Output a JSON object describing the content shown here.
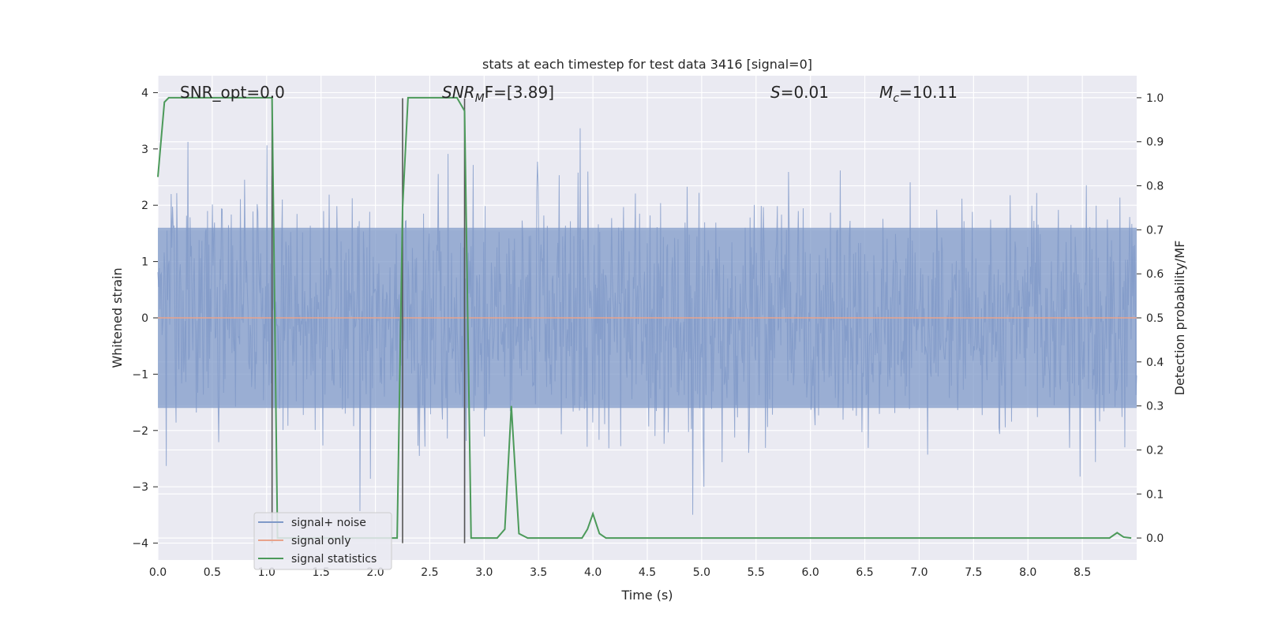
{
  "chart_data": {
    "type": "line",
    "title": "stats at each timestep for test data 3416 [signal=0]",
    "xlabel": "Time (s)",
    "ylabel": "Whitened strain",
    "y2label": "Detection probability/MF",
    "xlim": [
      0.0,
      9.0
    ],
    "ylim": [
      -4.3,
      4.3
    ],
    "y2lim": [
      -0.05,
      1.05
    ],
    "xticks": [
      0.0,
      0.5,
      1.0,
      1.5,
      2.0,
      2.5,
      3.0,
      3.5,
      4.0,
      4.5,
      5.0,
      5.5,
      6.0,
      6.5,
      7.0,
      7.5,
      8.0,
      8.5
    ],
    "yticks": [
      -4,
      -3,
      -2,
      -1,
      0,
      1,
      2,
      3,
      4
    ],
    "y2ticks": [
      0.0,
      0.1,
      0.2,
      0.3,
      0.4,
      0.5,
      0.6,
      0.7,
      0.8,
      0.9,
      1.0
    ],
    "grid": true,
    "legend_position": "lower-left",
    "annotations": {
      "snr_opt": "SNR_opt=0.0",
      "snr_mf_main": "SNR",
      "snr_mf_sub": "M",
      "snr_mf_rest": "F=[3.89]",
      "s_main": "S",
      "s_rest": "=0.01",
      "mc_main": "M",
      "mc_sub": "c",
      "mc_rest": "=10.11"
    },
    "vertical_markers_x": [
      1.05,
      2.25,
      2.82
    ],
    "series": [
      {
        "name": "signal+ noise",
        "color": "#7f99c8",
        "axis": "left",
        "description_envelope": {
          "typical_abs": 1.6,
          "max_abs": 4.0
        }
      },
      {
        "name": "signal only",
        "color": "#e8a38c",
        "axis": "left",
        "x": [
          0.0,
          9.0
        ],
        "y": [
          0.0,
          0.0
        ]
      },
      {
        "name": "signal statistics",
        "color": "#4c9a5a",
        "axis": "right",
        "x": [
          0.0,
          0.06,
          0.1,
          0.15,
          0.5,
          1.0,
          1.05,
          1.1,
          1.5,
          2.0,
          2.2,
          2.25,
          2.3,
          2.5,
          2.75,
          2.82,
          2.88,
          3.0,
          3.12,
          3.19,
          3.25,
          3.32,
          3.4,
          3.5,
          3.9,
          3.95,
          4.0,
          4.06,
          4.12,
          4.2,
          5.0,
          6.0,
          7.0,
          8.0,
          8.75,
          8.82,
          8.88,
          8.95
        ],
        "y": [
          0.82,
          0.99,
          1.0,
          1.0,
          1.0,
          1.0,
          1.0,
          0.0,
          0.0,
          0.0,
          0.0,
          0.75,
          1.0,
          1.0,
          1.0,
          0.97,
          0.0,
          0.0,
          0.0,
          0.02,
          0.3,
          0.01,
          0.0,
          0.0,
          0.0,
          0.02,
          0.055,
          0.01,
          0.0,
          0.0,
          0.0,
          0.0,
          0.0,
          0.0,
          0.0,
          0.012,
          0.002,
          0.0
        ]
      }
    ]
  }
}
